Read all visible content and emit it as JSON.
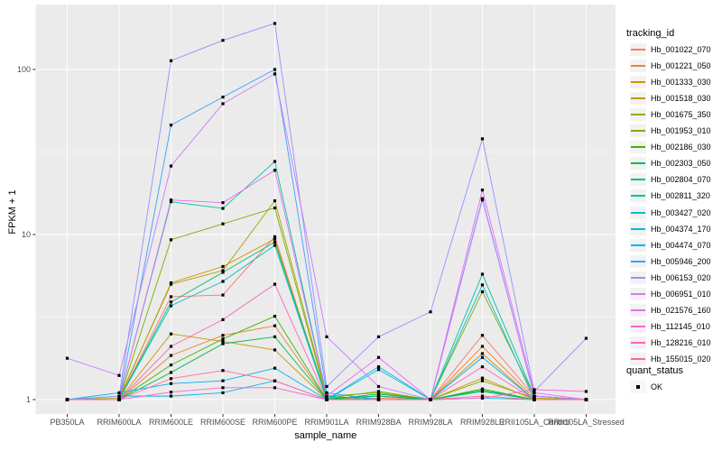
{
  "colors": {
    "page_bg": "#FFFFFF",
    "panel_bg": "#EBEBEB",
    "grid": "#FFFFFF",
    "tick_mark": "#333333",
    "tick_label": "#4D4D4D",
    "axis_title": "#000000",
    "point": "#000000",
    "legend_key_bg": "#F2F2F2"
  },
  "chart_data": {
    "type": "line",
    "title": "",
    "xlabel": "sample_name",
    "ylabel": "FPKM + 1",
    "y_scale": "log10",
    "y_ticks": [
      1,
      10,
      100
    ],
    "y_minor_ticks": [
      3.1623,
      31.623
    ],
    "ylim": [
      0.8,
      230
    ],
    "grid": true,
    "legend_position": "right",
    "legend_title": "tracking_id",
    "point_legend": {
      "title": "quant_status",
      "label": "OK",
      "marker": "square",
      "marker_color": "#000000"
    },
    "x_categories": [
      "PB350LA",
      "RRIM600LA",
      "RRIM600LE",
      "RRIM600SE",
      "RRIM600PE",
      "RRIM901LA",
      "RRIM928BA",
      "RRIM928LA",
      "RRIM928LE",
      "RRII105LA_Control",
      "RRII105LA_Stressed"
    ],
    "series": [
      {
        "name": "Hb_001022_070",
        "color": "#F8766D",
        "values": [
          1.0,
          1.0,
          4.2,
          4.3,
          9.7,
          1.0,
          1.02,
          1.0,
          2.45,
          1.05,
          1.0
        ]
      },
      {
        "name": "Hb_001221_050",
        "color": "#EA8331",
        "values": [
          1.0,
          1.0,
          1.85,
          2.45,
          2.8,
          1.0,
          1.0,
          1.0,
          2.1,
          1.02,
          1.0
        ]
      },
      {
        "name": "Hb_001333_030",
        "color": "#D89000",
        "values": [
          1.0,
          1.0,
          5.1,
          6.4,
          9.4,
          1.02,
          1.05,
          1.0,
          1.9,
          1.0,
          1.0
        ]
      },
      {
        "name": "Hb_001518_030",
        "color": "#C09B00",
        "values": [
          1.0,
          1.0,
          2.5,
          2.25,
          2.0,
          1.0,
          1.0,
          1.0,
          1.35,
          1.0,
          1.0
        ]
      },
      {
        "name": "Hb_001675_350",
        "color": "#A3A500",
        "values": [
          1.0,
          1.02,
          5.0,
          6.05,
          16.0,
          1.05,
          1.1,
          1.0,
          1.3,
          1.02,
          1.0
        ]
      },
      {
        "name": "Hb_001953_010",
        "color": "#7CAE00",
        "values": [
          1.0,
          1.0,
          9.3,
          11.6,
          14.5,
          1.02,
          1.12,
          1.0,
          4.5,
          1.05,
          1.0
        ]
      },
      {
        "name": "Hb_002186_030",
        "color": "#39B600",
        "values": [
          1.0,
          1.0,
          1.62,
          2.33,
          3.2,
          1.0,
          1.05,
          1.0,
          1.16,
          1.0,
          1.0
        ]
      },
      {
        "name": "Hb_002303_050",
        "color": "#00BB4E",
        "values": [
          1.0,
          1.0,
          1.46,
          2.18,
          2.4,
          1.0,
          1.08,
          1.0,
          1.14,
          1.0,
          1.0
        ]
      },
      {
        "name": "Hb_002804_070",
        "color": "#00BF7D",
        "values": [
          1.0,
          1.0,
          3.9,
          5.9,
          9.0,
          1.02,
          1.05,
          1.0,
          1.12,
          1.0,
          1.0
        ]
      },
      {
        "name": "Hb_002811_320",
        "color": "#00C1A3",
        "values": [
          1.0,
          1.0,
          15.8,
          14.4,
          27.7,
          1.05,
          1.0,
          1.0,
          5.75,
          1.05,
          1.0
        ]
      },
      {
        "name": "Hb_003427_020",
        "color": "#00BFC4",
        "values": [
          1.0,
          1.0,
          3.7,
          5.2,
          8.6,
          1.0,
          1.0,
          1.0,
          4.95,
          1.0,
          1.0
        ]
      },
      {
        "name": "Hb_004374_170",
        "color": "#00BAE0",
        "values": [
          1.0,
          1.05,
          1.05,
          1.1,
          1.3,
          1.0,
          1.52,
          1.0,
          1.02,
          1.0,
          1.0
        ]
      },
      {
        "name": "Hb_004474_070",
        "color": "#00B0F6",
        "values": [
          1.0,
          1.1,
          1.25,
          1.3,
          1.55,
          1.0,
          1.58,
          1.0,
          1.8,
          1.0,
          1.0
        ]
      },
      {
        "name": "Hb_005946_200",
        "color": "#35A2FF",
        "values": [
          1.0,
          1.0,
          46.0,
          68.0,
          100.0,
          1.1,
          1.0,
          1.0,
          16.5,
          1.05,
          1.0
        ]
      },
      {
        "name": "Hb_006153_020",
        "color": "#9590FF",
        "values": [
          1.0,
          1.05,
          113.0,
          150.0,
          190.0,
          1.2,
          2.4,
          3.4,
          38.0,
          1.12,
          2.35
        ]
      },
      {
        "name": "Hb_006951_010",
        "color": "#C77CFF",
        "values": [
          1.78,
          1.4,
          26.0,
          62.0,
          94.0,
          2.4,
          1.2,
          1.0,
          16.2,
          1.05,
          1.0
        ]
      },
      {
        "name": "Hb_021576_160",
        "color": "#E76BF3",
        "values": [
          1.0,
          1.0,
          16.2,
          15.6,
          24.5,
          1.05,
          1.8,
          1.0,
          18.6,
          1.1,
          1.0
        ]
      },
      {
        "name": "Hb_112145_010",
        "color": "#FA62DB",
        "values": [
          1.0,
          1.0,
          1.11,
          1.18,
          1.18,
          1.0,
          1.0,
          1.0,
          1.02,
          1.15,
          1.12
        ]
      },
      {
        "name": "Hb_128216_010",
        "color": "#FF62BC",
        "values": [
          1.0,
          1.0,
          2.1,
          3.05,
          5.0,
          1.0,
          1.0,
          1.0,
          1.58,
          1.0,
          1.0
        ]
      },
      {
        "name": "Hb_155015_020",
        "color": "#FF6A98",
        "values": [
          1.0,
          1.0,
          1.34,
          1.5,
          1.3,
          1.0,
          1.0,
          1.0,
          1.05,
          1.0,
          1.0
        ]
      }
    ]
  }
}
